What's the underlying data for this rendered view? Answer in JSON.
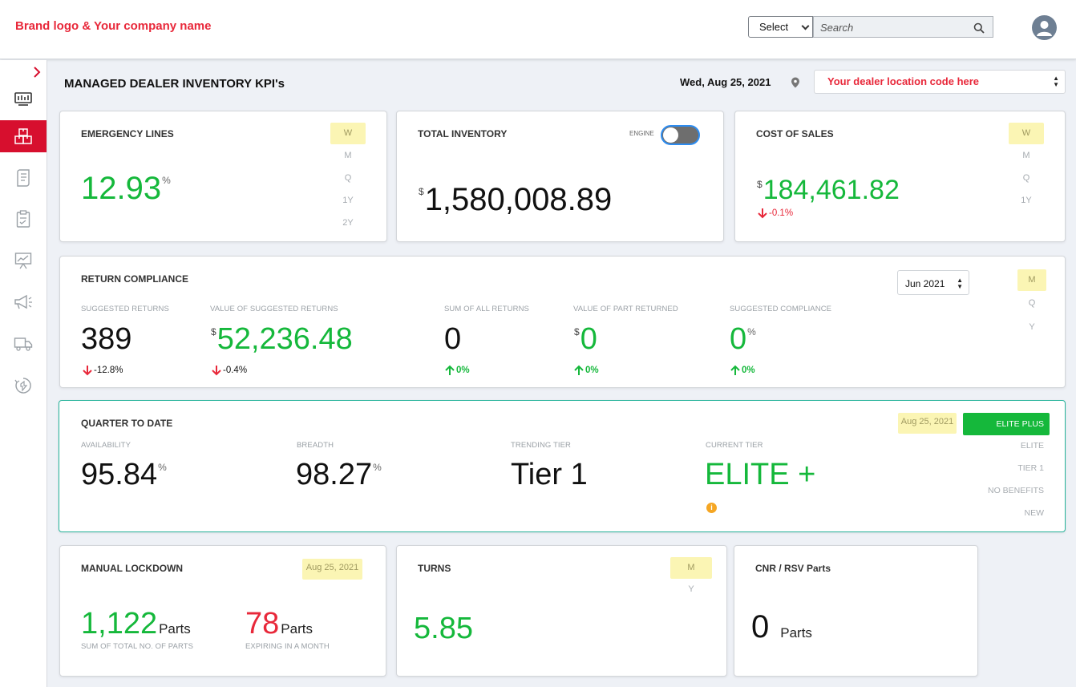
{
  "header": {
    "brand": "Brand logo & Your company name",
    "select_label": "Select",
    "search_placeholder": "Search"
  },
  "page": {
    "title": "MANAGED DEALER INVENTORY KPI's",
    "date": "Wed, Aug 25, 2021",
    "dealer_location": "Your dealer location code here"
  },
  "sidebar": {
    "icons": [
      "monitor-icon",
      "boxes-icon",
      "document-icon",
      "clipboard-icon",
      "presentation-chart-icon",
      "megaphone-icon",
      "delivery-truck-icon",
      "recycle-icon"
    ],
    "active_index": 1
  },
  "emergency": {
    "title": "EMERGENCY LINES",
    "value": "12.93",
    "suffix": "%",
    "periods": [
      "W",
      "M",
      "Q",
      "1Y",
      "2Y"
    ],
    "selected_period": "W"
  },
  "inventory": {
    "title": "TOTAL INVENTORY",
    "toggle_label": "ENGINE",
    "currency": "$",
    "value": "1,580,008.89"
  },
  "cost": {
    "title": "COST OF SALES",
    "currency": "$",
    "value": "184,461.82",
    "change": "-0.1%",
    "periods": [
      "W",
      "M",
      "Q",
      "1Y"
    ],
    "selected_period": "W"
  },
  "returns": {
    "title": "RETURN COMPLIANCE",
    "month": "Jun 2021",
    "periods": [
      "M",
      "Q",
      "Y"
    ],
    "selected_period": "M",
    "metrics": [
      {
        "label": "SUGGESTED RETURNS",
        "prefix": "",
        "value": "389",
        "suffix": "",
        "change": "-12.8%",
        "direction": "down"
      },
      {
        "label": "VALUE OF SUGGESTED RETURNS",
        "prefix": "$",
        "value": "52,236.48",
        "suffix": "",
        "change": "-0.4%",
        "direction": "down"
      },
      {
        "label": "SUM OF ALL RETURNS",
        "prefix": "",
        "value": "0",
        "suffix": "",
        "change": "0%",
        "direction": "up"
      },
      {
        "label": "VALUE OF PART RETURNED",
        "prefix": "$",
        "value": "0",
        "suffix": "",
        "change": "0%",
        "direction": "up"
      },
      {
        "label": "SUGGESTED COMPLIANCE",
        "prefix": "",
        "value": "0",
        "suffix": "%",
        "change": "0%",
        "direction": "up"
      }
    ]
  },
  "qtd": {
    "title": "QUARTER TO DATE",
    "date": "Aug 25, 2021",
    "availability_label": "AVAILABILITY",
    "availability": "95.84",
    "breadth_label": "BREADTH",
    "breadth": "98.27",
    "suffix": "%",
    "trending_label": "TRENDING TIER",
    "trending": "Tier 1",
    "current_label": "CURRENT TIER",
    "current": "ELITE +",
    "tiers": [
      "ELITE PLUS",
      "ELITE",
      "TIER 1",
      "NO BENEFITS",
      "NEW"
    ],
    "selected_tier": "ELITE PLUS",
    "info": "i"
  },
  "lockdown": {
    "title": "MANUAL LOCKDOWN",
    "date": "Aug 25, 2021",
    "total": "1,122",
    "total_unit": "Parts",
    "total_label": "SUM OF TOTAL NO. OF PARTS",
    "expiring": "78",
    "expiring_unit": "Parts",
    "expiring_label": "EXPIRING IN A MONTH"
  },
  "turns": {
    "title": "TURNS",
    "value": "5.85",
    "periods": [
      "M",
      "Y"
    ],
    "selected_period": "M"
  },
  "cnr": {
    "title": "CNR / RSV Parts",
    "value": "0",
    "unit": "Parts"
  },
  "colors": {
    "brand_red": "#e8283a",
    "positive_green": "#15b83b",
    "highlight_yellow": "#fbf5b4",
    "active_sidebar": "#d70f2e"
  }
}
